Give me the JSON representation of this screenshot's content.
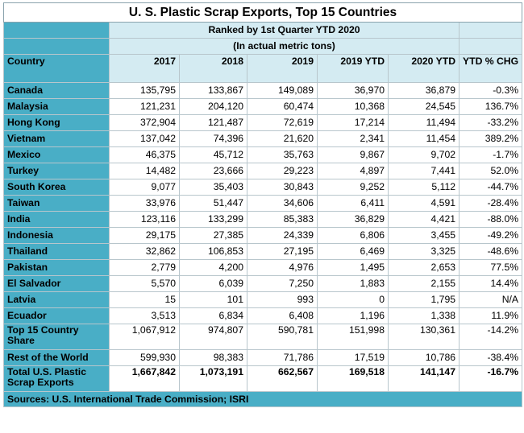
{
  "title": "U. S. Plastic Scrap Exports, Top 15 Countries",
  "subtitle": "Ranked by 1st Quarter YTD 2020",
  "unit_note": "(In actual metric tons)",
  "columns": [
    "Country",
    "2017",
    "2018",
    "2019",
    "2019 YTD",
    "2020 YTD",
    "YTD % CHG"
  ],
  "rows": [
    {
      "country": "Canada",
      "y2017": "135,795",
      "y2018": "133,867",
      "y2019": "149,089",
      "ytd2019": "36,970",
      "ytd2020": "36,879",
      "chg": "-0.3%"
    },
    {
      "country": "Malaysia",
      "y2017": "121,231",
      "y2018": "204,120",
      "y2019": "60,474",
      "ytd2019": "10,368",
      "ytd2020": "24,545",
      "chg": "136.7%"
    },
    {
      "country": "Hong Kong",
      "y2017": "372,904",
      "y2018": "121,487",
      "y2019": "72,619",
      "ytd2019": "17,214",
      "ytd2020": "11,494",
      "chg": "-33.2%"
    },
    {
      "country": "Vietnam",
      "y2017": "137,042",
      "y2018": "74,396",
      "y2019": "21,620",
      "ytd2019": "2,341",
      "ytd2020": "11,454",
      "chg": "389.2%"
    },
    {
      "country": "Mexico",
      "y2017": "46,375",
      "y2018": "45,712",
      "y2019": "35,763",
      "ytd2019": "9,867",
      "ytd2020": "9,702",
      "chg": "-1.7%"
    },
    {
      "country": "Turkey",
      "y2017": "14,482",
      "y2018": "23,666",
      "y2019": "29,223",
      "ytd2019": "4,897",
      "ytd2020": "7,441",
      "chg": "52.0%"
    },
    {
      "country": "South Korea",
      "y2017": "9,077",
      "y2018": "35,403",
      "y2019": "30,843",
      "ytd2019": "9,252",
      "ytd2020": "5,112",
      "chg": "-44.7%"
    },
    {
      "country": "Taiwan",
      "y2017": "33,976",
      "y2018": "51,447",
      "y2019": "34,606",
      "ytd2019": "6,411",
      "ytd2020": "4,591",
      "chg": "-28.4%"
    },
    {
      "country": "India",
      "y2017": "123,116",
      "y2018": "133,299",
      "y2019": "85,383",
      "ytd2019": "36,829",
      "ytd2020": "4,421",
      "chg": "-88.0%"
    },
    {
      "country": "Indonesia",
      "y2017": "29,175",
      "y2018": "27,385",
      "y2019": "24,339",
      "ytd2019": "6,806",
      "ytd2020": "3,455",
      "chg": "-49.2%"
    },
    {
      "country": "Thailand",
      "y2017": "32,862",
      "y2018": "106,853",
      "y2019": "27,195",
      "ytd2019": "6,469",
      "ytd2020": "3,325",
      "chg": "-48.6%"
    },
    {
      "country": "Pakistan",
      "y2017": "2,779",
      "y2018": "4,200",
      "y2019": "4,976",
      "ytd2019": "1,495",
      "ytd2020": "2,653",
      "chg": "77.5%"
    },
    {
      "country": "El Salvador",
      "y2017": "5,570",
      "y2018": "6,039",
      "y2019": "7,250",
      "ytd2019": "1,883",
      "ytd2020": "2,155",
      "chg": "14.4%"
    },
    {
      "country": "Latvia",
      "y2017": "15",
      "y2018": "101",
      "y2019": "993",
      "ytd2019": "0",
      "ytd2020": "1,795",
      "chg": "N/A"
    },
    {
      "country": "Ecuador",
      "y2017": "3,513",
      "y2018": "6,834",
      "y2019": "6,408",
      "ytd2019": "1,196",
      "ytd2020": "1,338",
      "chg": "11.9%"
    }
  ],
  "top15": {
    "country": "Top 15 Country Share",
    "y2017": "1,067,912",
    "y2018": "974,807",
    "y2019": "590,781",
    "ytd2019": "151,998",
    "ytd2020": "130,361",
    "chg": "-14.2%"
  },
  "rest": {
    "country": "Rest of the World",
    "y2017": "599,930",
    "y2018": "98,383",
    "y2019": "71,786",
    "ytd2019": "17,519",
    "ytd2020": "10,786",
    "chg": "-38.4%"
  },
  "total": {
    "country": "Total U.S. Plastic Scrap Exports",
    "y2017": "1,667,842",
    "y2018": "1,073,191",
    "y2019": "662,567",
    "ytd2019": "169,518",
    "ytd2020": "141,147",
    "chg": "-16.7%"
  },
  "source": "Sources: U.S. International Trade Commission; ISRI"
}
